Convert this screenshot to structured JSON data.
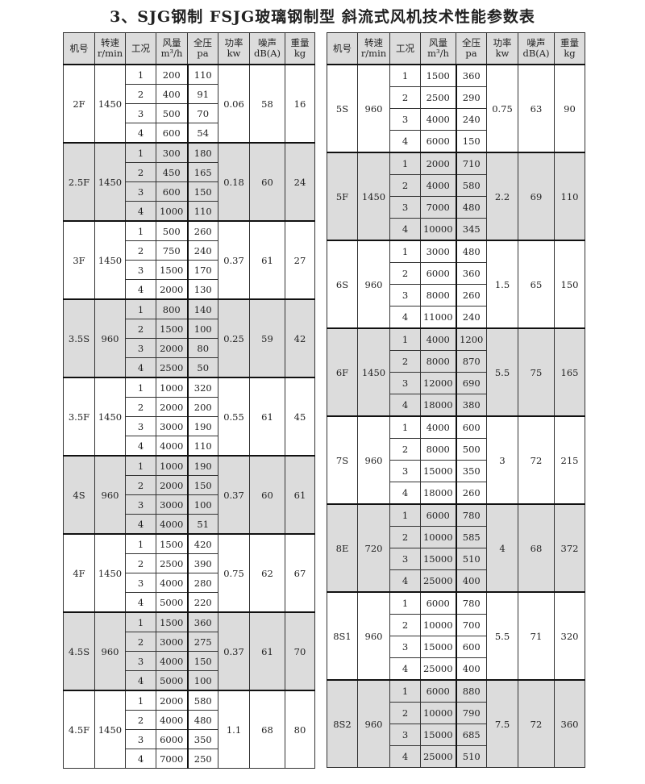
{
  "title": "3、SJG钢制  FSJG玻璃钢制型  斜流式风机技术性能参数表",
  "headers": [
    "机号",
    "转速\nr/min",
    "工况",
    "风量\nm³/h",
    "全压\npa",
    "功率\nkw",
    "噪声\ndB(A)",
    "重量\nkg"
  ],
  "shade_color": "#dcdcdc",
  "left_table": [
    {
      "model": "2F",
      "rpm": "1450",
      "power": "0.06",
      "noise": "58",
      "weight": "16",
      "shaded": false,
      "points": [
        [
          "1",
          "200",
          "110"
        ],
        [
          "2",
          "400",
          "91"
        ],
        [
          "3",
          "500",
          "70"
        ],
        [
          "4",
          "600",
          "54"
        ]
      ]
    },
    {
      "model": "2.5F",
      "rpm": "1450",
      "power": "0.18",
      "noise": "60",
      "weight": "24",
      "shaded": true,
      "points": [
        [
          "1",
          "300",
          "180"
        ],
        [
          "2",
          "450",
          "165"
        ],
        [
          "3",
          "600",
          "150"
        ],
        [
          "4",
          "1000",
          "110"
        ]
      ]
    },
    {
      "model": "3F",
      "rpm": "1450",
      "power": "0.37",
      "noise": "61",
      "weight": "27",
      "shaded": false,
      "points": [
        [
          "1",
          "500",
          "260"
        ],
        [
          "2",
          "750",
          "240"
        ],
        [
          "3",
          "1500",
          "170"
        ],
        [
          "4",
          "2000",
          "130"
        ]
      ]
    },
    {
      "model": "3.5S",
      "rpm": "960",
      "power": "0.25",
      "noise": "59",
      "weight": "42",
      "shaded": true,
      "points": [
        [
          "1",
          "800",
          "140"
        ],
        [
          "2",
          "1500",
          "100"
        ],
        [
          "3",
          "2000",
          "80"
        ],
        [
          "4",
          "2500",
          "50"
        ]
      ]
    },
    {
      "model": "3.5F",
      "rpm": "1450",
      "power": "0.55",
      "noise": "61",
      "weight": "45",
      "shaded": false,
      "points": [
        [
          "1",
          "1000",
          "320"
        ],
        [
          "2",
          "2000",
          "200"
        ],
        [
          "3",
          "3000",
          "190"
        ],
        [
          "4",
          "4000",
          "110"
        ]
      ]
    },
    {
      "model": "4S",
      "rpm": "960",
      "power": "0.37",
      "noise": "60",
      "weight": "61",
      "shaded": true,
      "points": [
        [
          "1",
          "1000",
          "190"
        ],
        [
          "2",
          "2000",
          "150"
        ],
        [
          "3",
          "3000",
          "100"
        ],
        [
          "4",
          "4000",
          "51"
        ]
      ]
    },
    {
      "model": "4F",
      "rpm": "1450",
      "power": "0.75",
      "noise": "62",
      "weight": "67",
      "shaded": false,
      "points": [
        [
          "1",
          "1500",
          "420"
        ],
        [
          "2",
          "2500",
          "390"
        ],
        [
          "3",
          "4000",
          "280"
        ],
        [
          "4",
          "5000",
          "220"
        ]
      ]
    },
    {
      "model": "4.5S",
      "rpm": "960",
      "power": "0.37",
      "noise": "61",
      "weight": "70",
      "shaded": true,
      "points": [
        [
          "1",
          "1500",
          "360"
        ],
        [
          "2",
          "3000",
          "275"
        ],
        [
          "3",
          "4000",
          "150"
        ],
        [
          "4",
          "5000",
          "100"
        ]
      ]
    },
    {
      "model": "4.5F",
      "rpm": "1450",
      "power": "1.1",
      "noise": "68",
      "weight": "80",
      "shaded": false,
      "points": [
        [
          "1",
          "2000",
          "580"
        ],
        [
          "2",
          "4000",
          "480"
        ],
        [
          "3",
          "6000",
          "350"
        ],
        [
          "4",
          "7000",
          "250"
        ]
      ]
    }
  ],
  "right_table": [
    {
      "model": "5S",
      "rpm": "960",
      "power": "0.75",
      "noise": "63",
      "weight": "90",
      "shaded": false,
      "points": [
        [
          "1",
          "1500",
          "360"
        ],
        [
          "2",
          "2500",
          "290"
        ],
        [
          "3",
          "4000",
          "240"
        ],
        [
          "4",
          "6000",
          "150"
        ]
      ]
    },
    {
      "model": "5F",
      "rpm": "1450",
      "power": "2.2",
      "noise": "69",
      "weight": "110",
      "shaded": true,
      "points": [
        [
          "1",
          "2000",
          "710"
        ],
        [
          "2",
          "4000",
          "580"
        ],
        [
          "3",
          "7000",
          "480"
        ],
        [
          "4",
          "10000",
          "345"
        ]
      ]
    },
    {
      "model": "6S",
      "rpm": "960",
      "power": "1.5",
      "noise": "65",
      "weight": "150",
      "shaded": false,
      "points": [
        [
          "1",
          "3000",
          "480"
        ],
        [
          "2",
          "6000",
          "360"
        ],
        [
          "3",
          "8000",
          "260"
        ],
        [
          "4",
          "11000",
          "240"
        ]
      ]
    },
    {
      "model": "6F",
      "rpm": "1450",
      "power": "5.5",
      "noise": "75",
      "weight": "165",
      "shaded": true,
      "points": [
        [
          "1",
          "4000",
          "1200"
        ],
        [
          "2",
          "8000",
          "870"
        ],
        [
          "3",
          "12000",
          "690"
        ],
        [
          "4",
          "18000",
          "380"
        ]
      ]
    },
    {
      "model": "7S",
      "rpm": "960",
      "power": "3",
      "noise": "72",
      "weight": "215",
      "shaded": false,
      "points": [
        [
          "1",
          "4000",
          "600"
        ],
        [
          "2",
          "8000",
          "500"
        ],
        [
          "3",
          "15000",
          "350"
        ],
        [
          "4",
          "18000",
          "260"
        ]
      ]
    },
    {
      "model": "8E",
      "rpm": "720",
      "power": "4",
      "noise": "68",
      "weight": "372",
      "shaded": true,
      "points": [
        [
          "1",
          "6000",
          "780"
        ],
        [
          "2",
          "10000",
          "585"
        ],
        [
          "3",
          "15000",
          "510"
        ],
        [
          "4",
          "25000",
          "400"
        ]
      ]
    },
    {
      "model": "8S1",
      "rpm": "960",
      "power": "5.5",
      "noise": "71",
      "weight": "320",
      "shaded": false,
      "points": [
        [
          "1",
          "6000",
          "780"
        ],
        [
          "2",
          "10000",
          "700"
        ],
        [
          "3",
          "15000",
          "600"
        ],
        [
          "4",
          "25000",
          "400"
        ]
      ]
    },
    {
      "model": "8S2",
      "rpm": "960",
      "power": "7.5",
      "noise": "72",
      "weight": "360",
      "shaded": true,
      "points": [
        [
          "1",
          "6000",
          "880"
        ],
        [
          "2",
          "10000",
          "790"
        ],
        [
          "3",
          "15000",
          "685"
        ],
        [
          "4",
          "25000",
          "510"
        ]
      ]
    }
  ]
}
